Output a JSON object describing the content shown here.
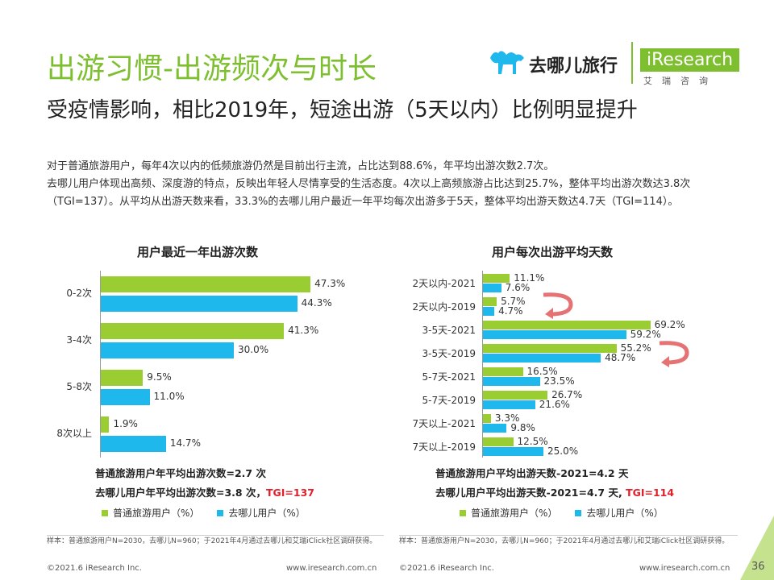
{
  "header": {
    "title": "出游习惯-出游频次与时长",
    "brand_name": "去哪儿旅行",
    "ir_logo": "iResearch",
    "ir_logo_cn": "艾瑞咨询"
  },
  "subtitle": "受疫情影响，相比2019年，短途出游（5天以内）比例明显提升",
  "body_text": [
    "对于普通旅游用户，每年4次以内的低频旅游仍然是目前出行主流，占比达到88.6%，年平均出游次数2.7次。",
    "去哪儿用户体现出高频、深度游的特点，反映出年轻人尽情享受的生活态度。4次以上高频旅游占比达到25.7%，整体平均出游次数达3.8次（TGI=137）。从平均从出游天数来看，33.3%的去哪儿用户最近一年平均每次出游多于5天，整体平均出游天数达4.7天（TGI=114）。"
  ],
  "colors": {
    "green": "#9acd32",
    "blue": "#1fb8ec",
    "red": "#e0202a",
    "arrow": "#e57373"
  },
  "chart_data": [
    {
      "type": "bar",
      "orientation": "horizontal",
      "title": "用户最近一年出游次数",
      "categories": [
        "0-2次",
        "3-4次",
        "5-8次",
        "8次以上"
      ],
      "series": [
        {
          "name": "普通旅游用户（%）",
          "values": [
            47.3,
            41.3,
            9.5,
            1.9
          ]
        },
        {
          "name": "去哪儿用户（%）",
          "values": [
            44.3,
            30.0,
            11.0,
            14.7
          ]
        }
      ],
      "value_labels": [
        [
          "47.3%",
          "41.3%",
          "9.5%",
          "1.9%"
        ],
        [
          "44.3%",
          "30.0%",
          "11.0%",
          "14.7%"
        ]
      ],
      "xlim": [
        0,
        100
      ]
    },
    {
      "type": "bar",
      "orientation": "horizontal",
      "title": "用户每次出游平均天数",
      "categories": [
        "2天以内-2021",
        "2天以内-2019",
        "3-5天-2021",
        "3-5天-2019",
        "5-7天-2021",
        "5-7天-2019",
        "7天以上-2021",
        "7天以上-2019"
      ],
      "series": [
        {
          "name": "普通旅游用户（%）",
          "values": [
            11.1,
            5.7,
            69.2,
            55.2,
            16.5,
            26.7,
            3.3,
            12.5
          ]
        },
        {
          "name": "去哪儿用户（%）",
          "values": [
            7.6,
            4.7,
            59.2,
            48.7,
            23.5,
            21.6,
            9.8,
            25.0
          ]
        }
      ],
      "value_labels": [
        [
          "11.1%",
          "5.7%",
          "69.2%",
          "55.2%",
          "16.5%",
          "26.7%",
          "3.3%",
          "12.5%"
        ],
        [
          "7.6%",
          "4.7%",
          "59.2%",
          "48.7%",
          "23.5%",
          "21.6%",
          "9.8%",
          "25.0%"
        ]
      ],
      "xlim": [
        0,
        100
      ]
    }
  ],
  "notes": {
    "left_line1": "普通旅游用户年平均出游次数=2.7 次",
    "left_line2_a": "去哪儿用户年平均出游次数=3.8 次，",
    "left_line2_b": "TGI=137",
    "right_line1": "普通旅游用户平均出游天数-2021=4.2 天",
    "right_line2_a": "去哪儿用户平均出游天数-2021=4.7 天, ",
    "right_line2_b": "TGI=114"
  },
  "legend": {
    "green": "普通旅游用户（%）",
    "blue": "去哪儿用户（%）"
  },
  "footnotes": {
    "left": "样本：普通旅游用户N=2030，去哪儿N=960；于2021年4月通过去哪儿和艾瑞iClick社区调研获得。",
    "right": "样本：普通旅游用户N=2030，去哪儿N=960；于2021年4月通过去哪儿和艾瑞iClick社区调研获得。"
  },
  "footer": {
    "left_copyright": "©2021.6 iResearch Inc.",
    "left_url": "www.iresearch.com.cn",
    "right_copyright": "©2021.6 iResearch Inc.",
    "right_url": "www.iresearch.com.cn",
    "page_number": "36"
  }
}
